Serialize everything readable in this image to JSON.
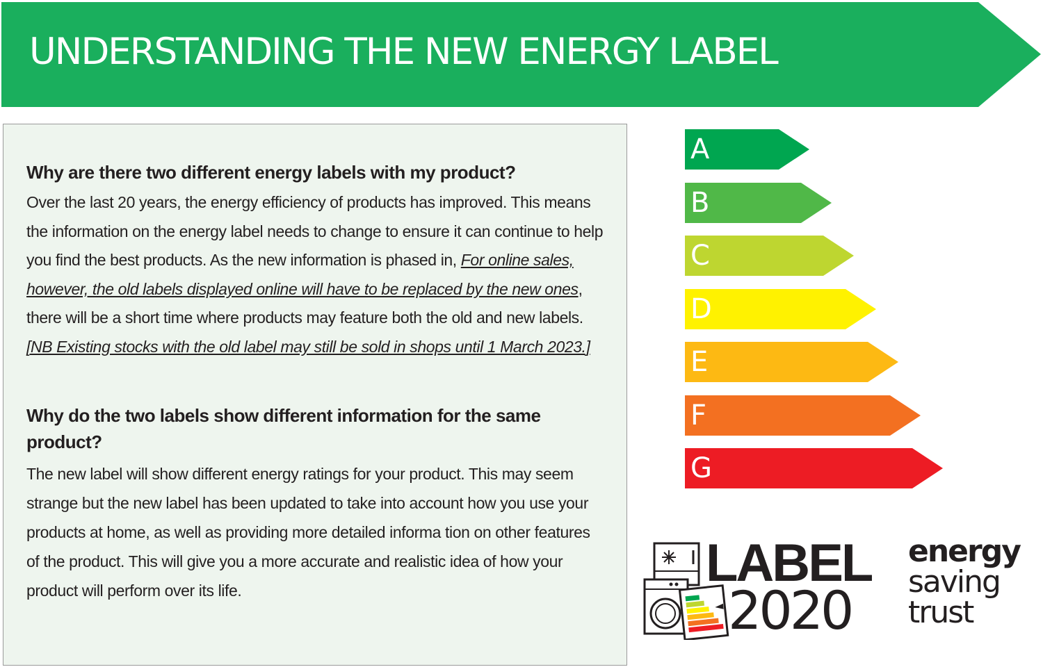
{
  "banner": {
    "title": "UNDERSTANDING THE NEW ENERGY LABEL",
    "color": "#1aaf5d"
  },
  "info_panel": {
    "sections": [
      {
        "heading": "Why are there two different energy labels with my product?",
        "paragraph": {
          "text_before": "Over the last 20 years, the energy efficiency of products has improved. This means the information on the energy label needs to change to ensure it can continue to help you find the best products. As the new information is phased in, ",
          "underlined_1": "For online sales, however, the old labels displayed online will have to be replaced by the new ones",
          "text_middle": ", there will be a short time where products may feature both the old and new labels.  ",
          "underlined_2": "[NB Existing stocks with the old label may still be sold in shops until 1 March 2023.]"
        }
      },
      {
        "heading": "Why do the two labels show different information for the same product?",
        "paragraph": {
          "text": "The new label will show different energy ratings for your product. This may seem strange but the new label has been updated to take into account how you use your products at home, as well as providing more detailed informa tion on other features of the product. This will give you a more accurate and realistic idea of how your product will perform over its life."
        }
      }
    ]
  },
  "energy_scale": {
    "bars": [
      {
        "letter": "A",
        "color": "#00a650"
      },
      {
        "letter": "B",
        "color": "#50b848"
      },
      {
        "letter": "C",
        "color": "#bed630"
      },
      {
        "letter": "D",
        "color": "#fff200"
      },
      {
        "letter": "E",
        "color": "#fdb913"
      },
      {
        "letter": "F",
        "color": "#f37021"
      },
      {
        "letter": "G",
        "color": "#ed1c24"
      }
    ]
  },
  "label2020_logo": {
    "word": "LABEL",
    "year": "2020",
    "icon": "appliances-energy-label-icon"
  },
  "energy_saving_trust_logo": {
    "line1": "energy",
    "line2": "saving",
    "line3": "trust"
  }
}
